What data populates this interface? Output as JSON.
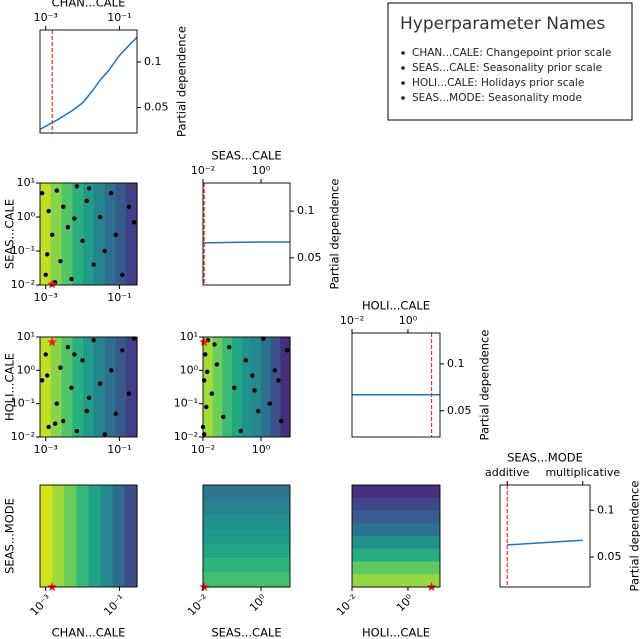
{
  "legend_box": {
    "title": "Hyperparameter Names",
    "items": [
      "CHAN...CALE: Changepoint prior scale",
      "SEAS...CALE: Seasonality prior scale",
      "HOLI...CALE: Holidays prior scale",
      "SEAS...MODE: Seasonality mode"
    ]
  },
  "chart_data": [
    {
      "type": "line",
      "xlabel": "CHAN...CALE",
      "ylabel": "Partial dependence",
      "xscale": "log",
      "xlim": [
        0.0007,
        0.3
      ],
      "xticks": [
        {
          "value": 0.001,
          "label": "10⁻³"
        },
        {
          "value": 0.1,
          "label": "10⁻¹"
        }
      ],
      "ylim": [
        0.022,
        0.135
      ],
      "yticks": [
        0.05,
        0.1
      ],
      "x": [
        0.0007,
        0.002,
        0.005,
        0.01,
        0.02,
        0.03,
        0.05,
        0.1,
        0.2,
        0.3
      ],
      "values": [
        0.026,
        0.036,
        0.046,
        0.055,
        0.07,
        0.08,
        0.09,
        0.107,
        0.12,
        0.127
      ],
      "color": "#1f77b4",
      "best_x": 0.0015,
      "best_color": "#e8302a"
    },
    {
      "type": "contour",
      "ylabel": "SEAS...CALE",
      "xscale": "log",
      "yscale": "log",
      "xlim": [
        0.0007,
        0.3
      ],
      "ylim": [
        0.01,
        10
      ],
      "xticks": [
        {
          "value": 0.001,
          "label": "10⁻³"
        },
        {
          "value": 0.1,
          "label": "10⁻¹"
        }
      ],
      "yticks": [
        {
          "value": 0.01,
          "label": "10⁻²"
        },
        {
          "value": 0.1,
          "label": "10⁻¹"
        },
        {
          "value": 1,
          "label": "10⁰"
        },
        {
          "value": 10,
          "label": "10¹"
        }
      ],
      "gradient": "horizontal",
      "colors": [
        "#c2df23",
        "#86d549",
        "#52c569",
        "#2ab07f",
        "#1e9b8a",
        "#25858e",
        "#2d708e",
        "#38588c",
        "#433e85"
      ],
      "points": {
        "x": [
          0.0008,
          0.001,
          0.0012,
          0.0015,
          0.002,
          0.0025,
          0.003,
          0.004,
          0.005,
          0.007,
          0.01,
          0.013,
          0.02,
          0.03,
          0.04,
          0.06,
          0.08,
          0.12,
          0.18,
          0.25,
          0.0011,
          0.0018,
          0.006,
          0.015
        ],
        "y": [
          5,
          0.02,
          1.5,
          0.3,
          6,
          0.05,
          2,
          0.5,
          0.015,
          8,
          0.2,
          3,
          0.04,
          1,
          0.1,
          5,
          0.3,
          0.02,
          2,
          0.7,
          0.08,
          0.012,
          0.9,
          7
        ]
      },
      "point_color": "#000000",
      "best": {
        "x": 0.0015,
        "y": 0.0105
      },
      "best_color": "#ff1a1a"
    },
    {
      "type": "line",
      "xlabel": "SEAS...CALE",
      "ylabel": "Partial dependence",
      "xscale": "log",
      "xlim": [
        0.01,
        10
      ],
      "xticks": [
        {
          "value": 0.01,
          "label": "10⁻²"
        },
        {
          "value": 1,
          "label": "10⁰"
        }
      ],
      "ylim": [
        0.021,
        0.13
      ],
      "yticks": [
        0.05,
        0.1
      ],
      "x": [
        0.01,
        0.1,
        1,
        10
      ],
      "values": [
        0.066,
        0.0665,
        0.067,
        0.067
      ],
      "color": "#1f77b4",
      "best_x": 0.011,
      "best_color": "#e8302a"
    },
    {
      "type": "contour",
      "ylabel": "HOLI...CALE",
      "xscale": "log",
      "yscale": "log",
      "xlim": [
        0.0007,
        0.3
      ],
      "ylim": [
        0.01,
        10
      ],
      "xticks": [
        {
          "value": 0.001,
          "label": "10⁻³"
        },
        {
          "value": 0.1,
          "label": "10⁻¹"
        }
      ],
      "yticks": [
        {
          "value": 0.01,
          "label": "10⁻²"
        },
        {
          "value": 0.1,
          "label": "10⁻¹"
        },
        {
          "value": 1,
          "label": "10⁰"
        },
        {
          "value": 10,
          "label": "10¹"
        }
      ],
      "gradient": "horizontal",
      "colors": [
        "#c2df23",
        "#86d549",
        "#52c569",
        "#2ab07f",
        "#1e9b8a",
        "#25858e",
        "#2d708e",
        "#38588c",
        "#433e85"
      ],
      "points": {
        "x": [
          0.0008,
          0.001,
          0.0012,
          0.0015,
          0.002,
          0.0025,
          0.003,
          0.004,
          0.005,
          0.007,
          0.01,
          0.013,
          0.02,
          0.03,
          0.04,
          0.06,
          0.08,
          0.12,
          0.18,
          0.25,
          0.0011,
          0.0018,
          0.006,
          0.015
        ],
        "y": [
          0.5,
          3,
          0.02,
          7,
          0.1,
          1.2,
          0.03,
          5,
          0.3,
          0.015,
          2,
          0.06,
          8,
          0.4,
          0.012,
          1,
          0.05,
          4,
          0.2,
          9,
          0.7,
          0.025,
          3,
          0.15
        ]
      },
      "point_color": "#000000",
      "best": {
        "x": 0.0015,
        "y": 7
      },
      "best_color": "#ff1a1a"
    },
    {
      "type": "contour",
      "xscale": "log",
      "yscale": "log",
      "xlim": [
        0.01,
        10
      ],
      "ylim": [
        0.01,
        10
      ],
      "xticks": [
        {
          "value": 0.01,
          "label": "10⁻²"
        },
        {
          "value": 1,
          "label": "10⁰"
        }
      ],
      "yticks": [
        {
          "value": 0.01,
          "label": "10⁻²"
        },
        {
          "value": 0.1,
          "label": "10⁻¹"
        },
        {
          "value": 1,
          "label": "10⁰"
        },
        {
          "value": 10,
          "label": "10¹"
        }
      ],
      "gradient": "horizontal",
      "colors": [
        "#a5db36",
        "#6ccd5a",
        "#3bbb75",
        "#22a785",
        "#1f948c",
        "#23898e",
        "#2c728e",
        "#3b528b",
        "#472d7b"
      ],
      "points": {
        "x": [
          0.01,
          0.011,
          0.012,
          0.013,
          0.015,
          0.02,
          0.03,
          0.05,
          0.08,
          0.12,
          0.2,
          0.3,
          0.5,
          0.8,
          1.2,
          2,
          3,
          5,
          8,
          0.011,
          0.014,
          0.025,
          0.6,
          4
        ],
        "y": [
          0.02,
          0.5,
          3,
          0.08,
          8,
          0.2,
          1.5,
          0.04,
          5,
          0.3,
          0.015,
          2,
          0.7,
          0.06,
          9,
          0.1,
          1,
          0.03,
          4,
          0.012,
          0.9,
          6,
          0.25,
          0.5
        ]
      },
      "point_color": "#000000",
      "best": {
        "x": 0.011,
        "y": 7
      },
      "best_color": "#ff1a1a"
    },
    {
      "type": "line",
      "xlabel": "HOLI...CALE",
      "ylabel": "Partial dependence",
      "xscale": "log",
      "xlim": [
        0.01,
        14
      ],
      "xticks": [
        {
          "value": 0.01,
          "label": "10⁻²"
        },
        {
          "value": 1,
          "label": "10⁰"
        }
      ],
      "ylim": [
        0.022,
        0.133
      ],
      "yticks": [
        0.05,
        0.1
      ],
      "x": [
        0.01,
        0.1,
        1,
        14
      ],
      "values": [
        0.067,
        0.067,
        0.067,
        0.067
      ],
      "color": "#1f77b4",
      "best_x": 7,
      "best_color": "#e8302a"
    },
    {
      "type": "contour",
      "xlabel": "CHAN...CALE",
      "ylabel": "SEAS...MODE",
      "xscale": "log",
      "yscale": "category",
      "xlim": [
        0.0007,
        0.3
      ],
      "y_categories": [
        "additive",
        "multiplicative"
      ],
      "xtick_rotation": 45,
      "xticks": [
        {
          "value": 0.001,
          "label": "10⁻³"
        },
        {
          "value": 0.1,
          "label": "10⁻¹"
        }
      ],
      "gradient": "horizontal",
      "colors": [
        "#d2e21b",
        "#9fda3a",
        "#67cc5c",
        "#35b779",
        "#20a386",
        "#24868e",
        "#2f6b8e",
        "#3e4c8a"
      ],
      "best": {
        "x": 0.0015,
        "y": "additive"
      },
      "best_color": "#ff1a1a"
    },
    {
      "type": "contour",
      "xlabel": "SEAS...CALE",
      "xscale": "log",
      "yscale": "category",
      "xlim": [
        0.01,
        10
      ],
      "y_categories": [
        "additive",
        "multiplicative"
      ],
      "xtick_rotation": 45,
      "xticks": [
        {
          "value": 0.01,
          "label": "10⁻²"
        },
        {
          "value": 1,
          "label": "10⁰"
        }
      ],
      "gradient": "vertical",
      "colors": [
        "#2a778e",
        "#25838e",
        "#21908d",
        "#1f9a8a",
        "#22a785",
        "#2fb47c",
        "#45bf70"
      ],
      "best": {
        "x": 0.011,
        "y": "additive"
      },
      "best_color": "#ff1a1a"
    },
    {
      "type": "contour",
      "xlabel": "HOLI...CALE",
      "xscale": "log",
      "yscale": "category",
      "xlim": [
        0.01,
        14
      ],
      "y_categories": [
        "additive",
        "multiplicative"
      ],
      "xtick_rotation": 45,
      "xticks": [
        {
          "value": 0.01,
          "label": "10⁻²"
        },
        {
          "value": 1,
          "label": "10⁰"
        }
      ],
      "gradient": "vertical",
      "colors": [
        "#46307e",
        "#3f4788",
        "#365d8d",
        "#2c728e",
        "#21918c",
        "#27ad81",
        "#5ec962",
        "#95d840"
      ],
      "best": {
        "x": 7,
        "y": "additive"
      },
      "best_color": "#ff1a1a"
    },
    {
      "type": "line",
      "xlabel": "SEAS...MODE",
      "ylabel": "Partial dependence",
      "categories": [
        "additive",
        "multiplicative"
      ],
      "ylim": [
        0.018,
        0.127
      ],
      "yticks": [
        0.05,
        0.1
      ],
      "values": [
        0.063,
        0.068
      ],
      "color": "#1f77b4",
      "best_x": "additive",
      "best_color": "#e8302a"
    }
  ]
}
